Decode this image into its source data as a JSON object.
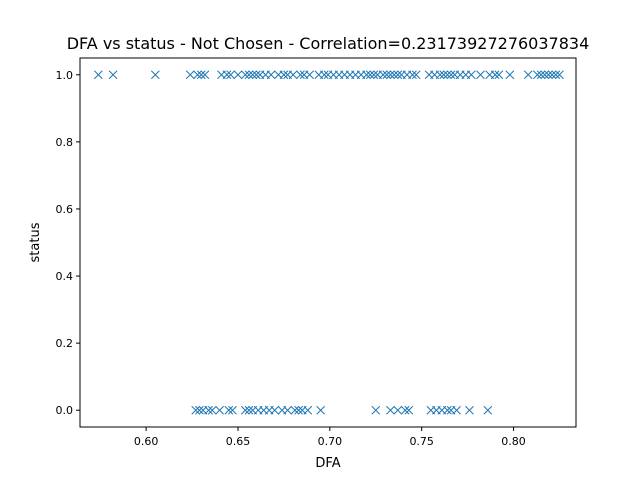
{
  "chart_data": {
    "type": "scatter",
    "title": "DFA vs status - Not Chosen - Correlation=0.23173927276037834",
    "xlabel": "DFA",
    "ylabel": "status",
    "xlim": [
      0.564,
      0.834
    ],
    "ylim": [
      -0.05,
      1.05
    ],
    "xticks": [
      0.6,
      0.65,
      0.7,
      0.75,
      0.8
    ],
    "xtick_labels": [
      "0.60",
      "0.65",
      "0.70",
      "0.75",
      "0.80"
    ],
    "yticks": [
      0.0,
      0.2,
      0.4,
      0.6,
      0.8,
      1.0
    ],
    "ytick_labels": [
      "0.0",
      "0.2",
      "0.4",
      "0.6",
      "0.8",
      "1.0"
    ],
    "grid": false,
    "marker": "x",
    "color": "#1f77b4",
    "series": [
      {
        "values": [
          {
            "x": 0.574,
            "y": 1
          },
          {
            "x": 0.582,
            "y": 1
          },
          {
            "x": 0.605,
            "y": 1
          },
          {
            "x": 0.624,
            "y": 1
          },
          {
            "x": 0.628,
            "y": 1
          },
          {
            "x": 0.63,
            "y": 1
          },
          {
            "x": 0.632,
            "y": 1
          },
          {
            "x": 0.641,
            "y": 1
          },
          {
            "x": 0.644,
            "y": 1
          },
          {
            "x": 0.646,
            "y": 1
          },
          {
            "x": 0.65,
            "y": 1
          },
          {
            "x": 0.654,
            "y": 1
          },
          {
            "x": 0.656,
            "y": 1
          },
          {
            "x": 0.658,
            "y": 1
          },
          {
            "x": 0.66,
            "y": 1
          },
          {
            "x": 0.662,
            "y": 1
          },
          {
            "x": 0.665,
            "y": 1
          },
          {
            "x": 0.668,
            "y": 1
          },
          {
            "x": 0.672,
            "y": 1
          },
          {
            "x": 0.675,
            "y": 1
          },
          {
            "x": 0.677,
            "y": 1
          },
          {
            "x": 0.68,
            "y": 1
          },
          {
            "x": 0.684,
            "y": 1
          },
          {
            "x": 0.686,
            "y": 1
          },
          {
            "x": 0.689,
            "y": 1
          },
          {
            "x": 0.694,
            "y": 1
          },
          {
            "x": 0.697,
            "y": 1
          },
          {
            "x": 0.699,
            "y": 1
          },
          {
            "x": 0.702,
            "y": 1
          },
          {
            "x": 0.705,
            "y": 1
          },
          {
            "x": 0.708,
            "y": 1
          },
          {
            "x": 0.711,
            "y": 1
          },
          {
            "x": 0.714,
            "y": 1
          },
          {
            "x": 0.717,
            "y": 1
          },
          {
            "x": 0.72,
            "y": 1
          },
          {
            "x": 0.722,
            "y": 1
          },
          {
            "x": 0.724,
            "y": 1
          },
          {
            "x": 0.726,
            "y": 1
          },
          {
            "x": 0.729,
            "y": 1
          },
          {
            "x": 0.731,
            "y": 1
          },
          {
            "x": 0.733,
            "y": 1
          },
          {
            "x": 0.735,
            "y": 1
          },
          {
            "x": 0.737,
            "y": 1
          },
          {
            "x": 0.739,
            "y": 1
          },
          {
            "x": 0.742,
            "y": 1
          },
          {
            "x": 0.745,
            "y": 1
          },
          {
            "x": 0.747,
            "y": 1
          },
          {
            "x": 0.754,
            "y": 1
          },
          {
            "x": 0.757,
            "y": 1
          },
          {
            "x": 0.76,
            "y": 1
          },
          {
            "x": 0.762,
            "y": 1
          },
          {
            "x": 0.764,
            "y": 1
          },
          {
            "x": 0.766,
            "y": 1
          },
          {
            "x": 0.768,
            "y": 1
          },
          {
            "x": 0.771,
            "y": 1
          },
          {
            "x": 0.774,
            "y": 1
          },
          {
            "x": 0.777,
            "y": 1
          },
          {
            "x": 0.782,
            "y": 1
          },
          {
            "x": 0.787,
            "y": 1
          },
          {
            "x": 0.79,
            "y": 1
          },
          {
            "x": 0.792,
            "y": 1
          },
          {
            "x": 0.798,
            "y": 1
          },
          {
            "x": 0.808,
            "y": 1
          },
          {
            "x": 0.813,
            "y": 1
          },
          {
            "x": 0.815,
            "y": 1
          },
          {
            "x": 0.817,
            "y": 1
          },
          {
            "x": 0.819,
            "y": 1
          },
          {
            "x": 0.821,
            "y": 1
          },
          {
            "x": 0.823,
            "y": 1
          },
          {
            "x": 0.825,
            "y": 1
          },
          {
            "x": 0.627,
            "y": 0
          },
          {
            "x": 0.629,
            "y": 0
          },
          {
            "x": 0.631,
            "y": 0
          },
          {
            "x": 0.634,
            "y": 0
          },
          {
            "x": 0.636,
            "y": 0
          },
          {
            "x": 0.64,
            "y": 0
          },
          {
            "x": 0.645,
            "y": 0
          },
          {
            "x": 0.647,
            "y": 0
          },
          {
            "x": 0.654,
            "y": 0
          },
          {
            "x": 0.656,
            "y": 0
          },
          {
            "x": 0.658,
            "y": 0
          },
          {
            "x": 0.661,
            "y": 0
          },
          {
            "x": 0.664,
            "y": 0
          },
          {
            "x": 0.667,
            "y": 0
          },
          {
            "x": 0.67,
            "y": 0
          },
          {
            "x": 0.674,
            "y": 0
          },
          {
            "x": 0.677,
            "y": 0
          },
          {
            "x": 0.681,
            "y": 0
          },
          {
            "x": 0.683,
            "y": 0
          },
          {
            "x": 0.685,
            "y": 0
          },
          {
            "x": 0.688,
            "y": 0
          },
          {
            "x": 0.695,
            "y": 0
          },
          {
            "x": 0.725,
            "y": 0
          },
          {
            "x": 0.733,
            "y": 0
          },
          {
            "x": 0.737,
            "y": 0
          },
          {
            "x": 0.741,
            "y": 0
          },
          {
            "x": 0.743,
            "y": 0
          },
          {
            "x": 0.755,
            "y": 0
          },
          {
            "x": 0.758,
            "y": 0
          },
          {
            "x": 0.761,
            "y": 0
          },
          {
            "x": 0.764,
            "y": 0
          },
          {
            "x": 0.766,
            "y": 0
          },
          {
            "x": 0.769,
            "y": 0
          },
          {
            "x": 0.776,
            "y": 0
          },
          {
            "x": 0.786,
            "y": 0
          }
        ]
      }
    ]
  }
}
